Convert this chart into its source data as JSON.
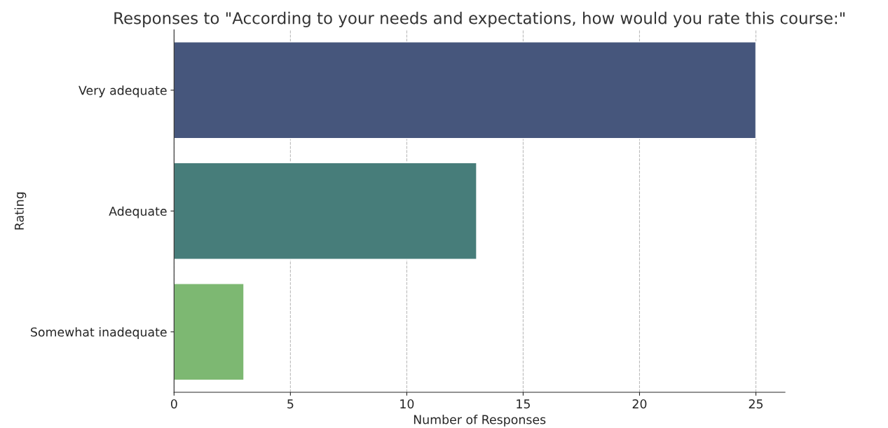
{
  "chart_data": {
    "type": "bar",
    "orientation": "horizontal",
    "title": "Responses to \"According to your needs and expectations, how would you rate this course:\"",
    "xlabel": "Number of Responses",
    "ylabel": "Rating",
    "categories": [
      "Very adequate",
      "Adequate",
      "Somewhat inadequate"
    ],
    "values": [
      25,
      13,
      3
    ],
    "colors": [
      "#46567c",
      "#477d7a",
      "#7db872"
    ],
    "xlim": [
      0,
      26.25
    ],
    "xticks": [
      0,
      5,
      10,
      15,
      20,
      25
    ],
    "grid": "x",
    "legend": false
  }
}
